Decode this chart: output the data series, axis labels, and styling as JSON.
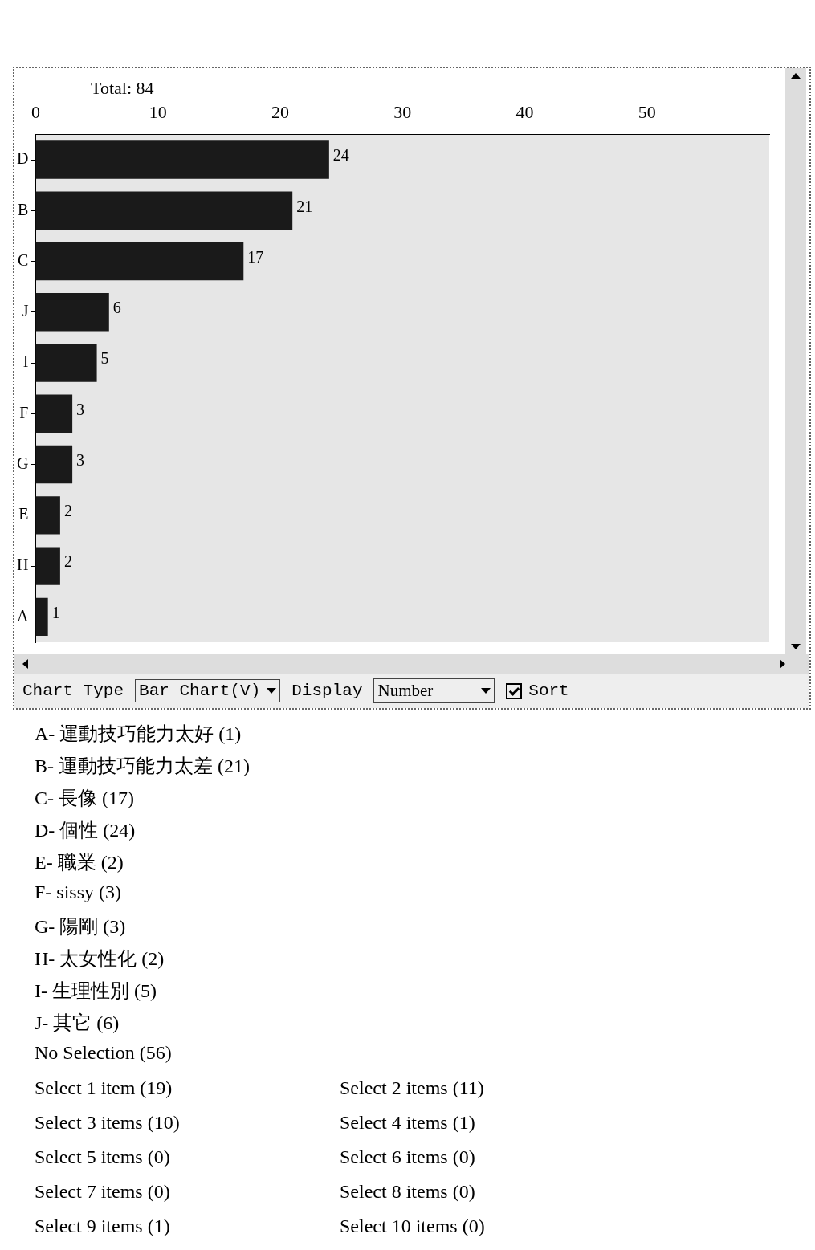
{
  "chart_data": {
    "type": "bar",
    "orientation": "horizontal",
    "categories": [
      "D",
      "B",
      "C",
      "J",
      "I",
      "F",
      "G",
      "E",
      "H",
      "A"
    ],
    "values": [
      24,
      21,
      17,
      6,
      5,
      3,
      3,
      2,
      2,
      1
    ],
    "color": "#1a1a1a",
    "data_labels": true,
    "xlim": [
      0,
      60
    ],
    "xticks": [
      0,
      10,
      20,
      30,
      40,
      50
    ],
    "annotations": [
      "Total: 84",
      "Chart Type",
      "Bar Chart(V)",
      "Display",
      "Number",
      "Sort",
      "A- 運動技巧能力太好 (1)",
      "B- 運動技巧能力太差 (21)",
      "C- 長像 (17)",
      "D- 個性 (24)",
      "E- 職業 (2)",
      "F- sissy (3)",
      "G- 陽剛 (3)",
      "H- 太女性化 (2)",
      "I- 生理性別 (5)",
      "J- 其它 (6)",
      "No Selection (56)",
      "Select 1 item (19)",
      "Select 2 items (11)",
      "Select 3 items (10)",
      "Select 4 items (1)",
      "Select 5 items (0)",
      "Select 6 items (0)",
      "Select 7 items (0)",
      "Select 8 items (0)",
      "Select 9 items (1)",
      "Select 10 items (0)"
    ]
  }
}
